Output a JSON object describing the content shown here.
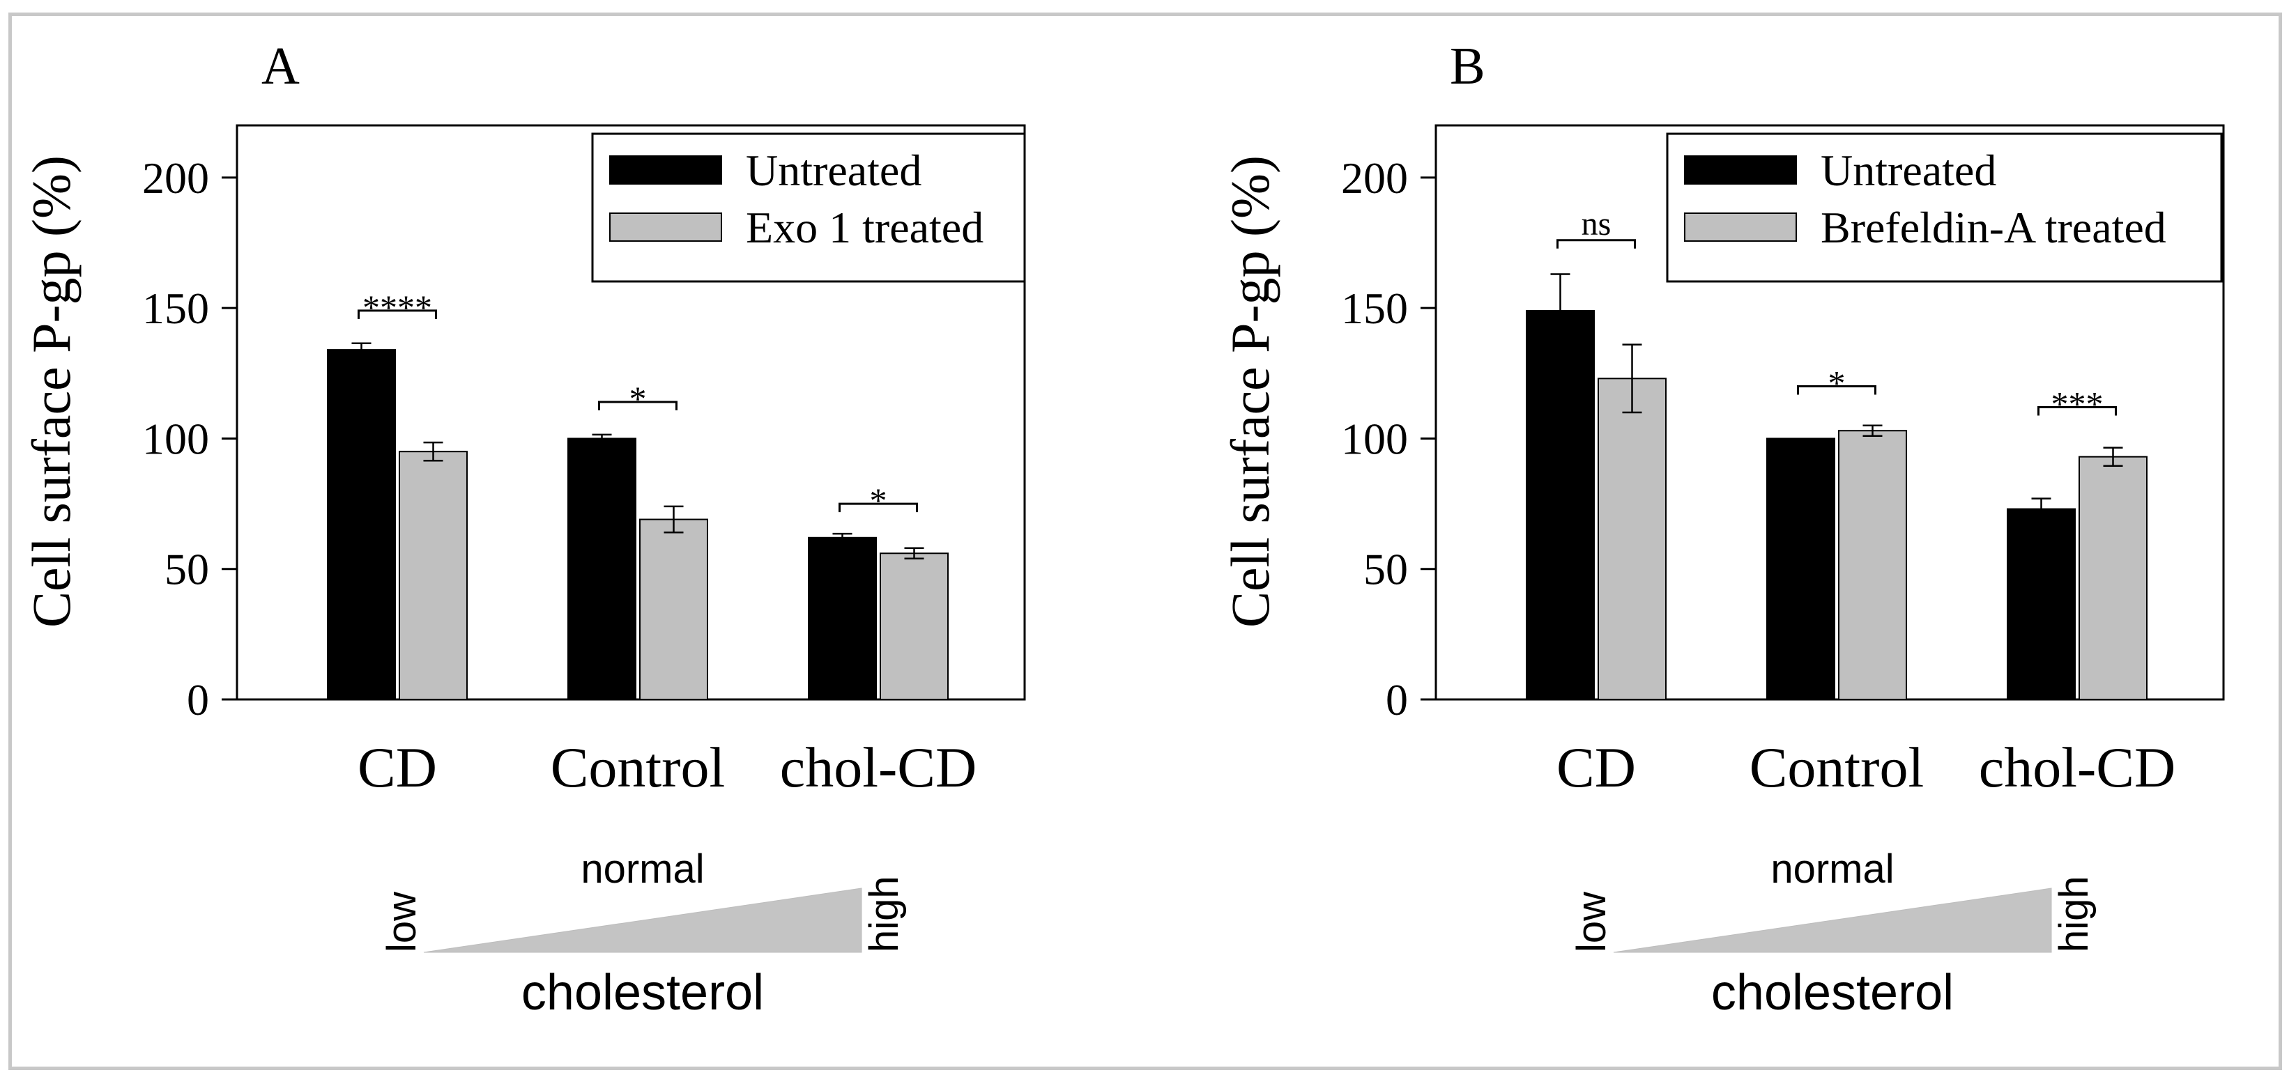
{
  "chart_data": [
    {
      "panel": "A",
      "type": "bar",
      "title": "",
      "ylabel": "Cell surface P-gp (%)",
      "xlabel": "",
      "ylim": [
        0,
        220
      ],
      "yticks": [
        0,
        50,
        100,
        150,
        200
      ],
      "categories": [
        "CD",
        "Control",
        "chol-CD"
      ],
      "series": [
        {
          "name": "Untreated",
          "color": "#000000",
          "values": [
            134,
            100,
            62
          ],
          "errors": [
            2.5,
            1.5,
            1.5
          ]
        },
        {
          "name": "Exo 1 treated",
          "color": "#c0c0c0",
          "values": [
            95,
            69,
            56
          ],
          "errors": [
            3.5,
            5,
            2
          ]
        }
      ],
      "significance": [
        {
          "category": "CD",
          "label": "****",
          "y": 149
        },
        {
          "category": "Control",
          "label": "*",
          "y": 114
        },
        {
          "category": "chol-CD",
          "label": "*",
          "y": 75
        }
      ],
      "legend": "top-right",
      "gradient": {
        "left": "low",
        "middle": "normal",
        "right": "high",
        "caption": "cholesterol"
      }
    },
    {
      "panel": "B",
      "type": "bar",
      "title": "",
      "ylabel": "Cell surface P-gp (%)",
      "xlabel": "",
      "ylim": [
        0,
        220
      ],
      "yticks": [
        0,
        50,
        100,
        150,
        200
      ],
      "categories": [
        "CD",
        "Control",
        "chol-CD"
      ],
      "series": [
        {
          "name": "Untreated",
          "color": "#000000",
          "values": [
            149,
            100,
            73
          ],
          "errors": [
            14,
            0,
            4
          ]
        },
        {
          "name": "Brefeldin-A treated",
          "color": "#c0c0c0",
          "values": [
            123,
            103,
            93
          ],
          "errors": [
            13,
            2,
            3.5
          ]
        }
      ],
      "significance": [
        {
          "category": "CD",
          "label": "ns",
          "y": 176
        },
        {
          "category": "Control",
          "label": "*",
          "y": 120
        },
        {
          "category": "chol-CD",
          "label": "***",
          "y": 112
        }
      ],
      "legend": "top-right",
      "gradient": {
        "left": "low",
        "middle": "normal",
        "right": "high",
        "caption": "cholesterol"
      }
    }
  ]
}
